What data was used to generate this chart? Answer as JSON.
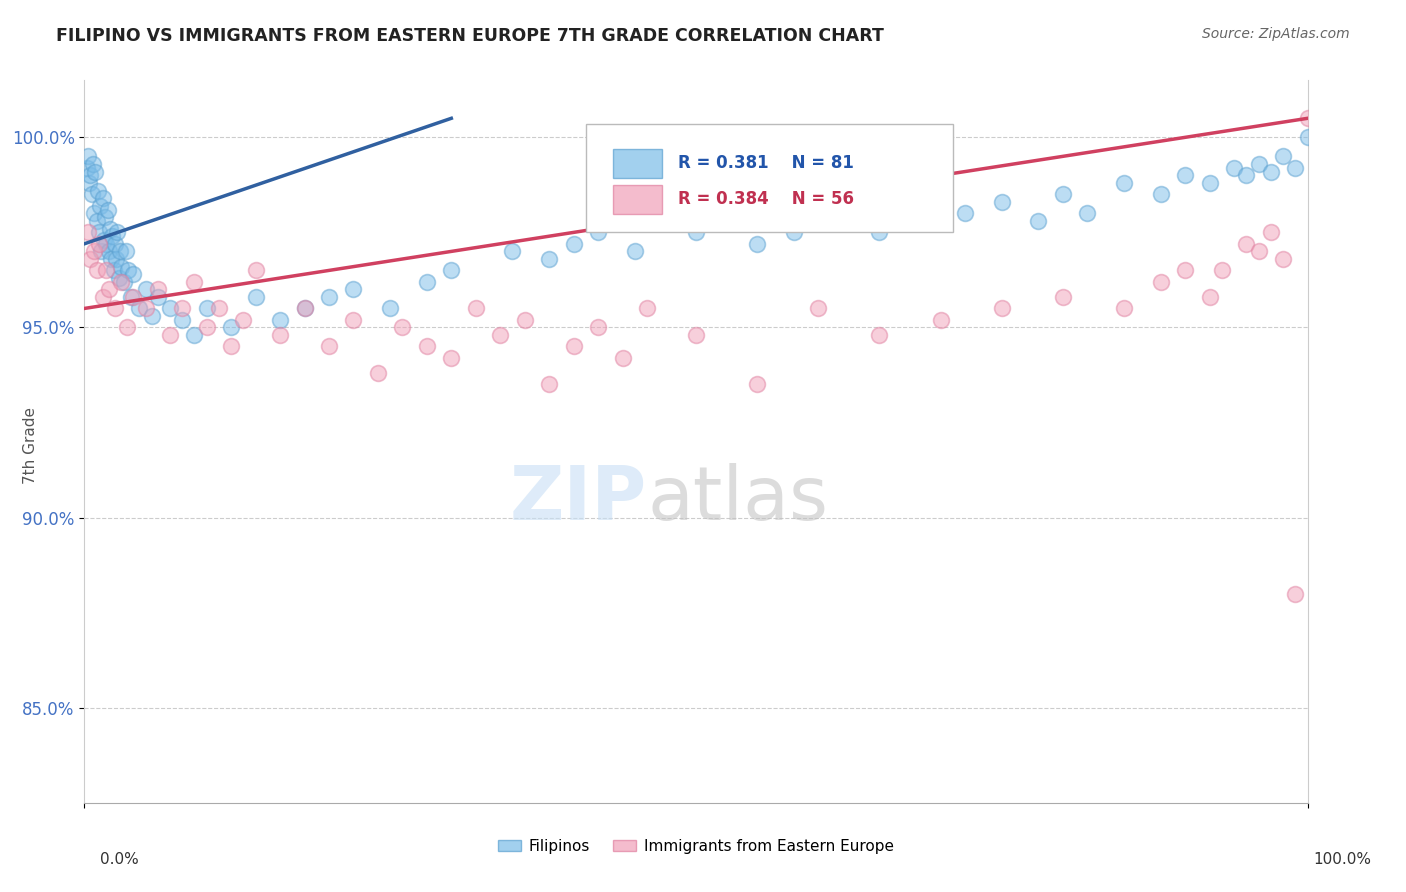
{
  "title": "FILIPINO VS IMMIGRANTS FROM EASTERN EUROPE 7TH GRADE CORRELATION CHART",
  "source": "Source: ZipAtlas.com",
  "ylabel": "7th Grade",
  "xlim": [
    0.0,
    100.0
  ],
  "ylim": [
    82.5,
    101.5
  ],
  "yticks": [
    85.0,
    90.0,
    95.0,
    100.0
  ],
  "ytick_labels": [
    "85.0%",
    "90.0%",
    "95.0%",
    "100.0%"
  ],
  "r_blue": 0.381,
  "n_blue": 81,
  "r_pink": 0.384,
  "n_pink": 56,
  "blue_color": "#7bbce8",
  "blue_edge_color": "#5aa0d0",
  "blue_line_color": "#3060a0",
  "pink_color": "#f0a0b8",
  "pink_edge_color": "#e080a0",
  "pink_line_color": "#d04060",
  "legend_label_blue": "Filipinos",
  "legend_label_pink": "Immigrants from Eastern Europe",
  "blue_scatter_x": [
    0.2,
    0.3,
    0.4,
    0.5,
    0.6,
    0.7,
    0.8,
    0.9,
    1.0,
    1.1,
    1.2,
    1.3,
    1.4,
    1.5,
    1.6,
    1.7,
    1.8,
    1.9,
    2.0,
    2.1,
    2.2,
    2.3,
    2.4,
    2.5,
    2.6,
    2.7,
    2.8,
    2.9,
    3.0,
    3.2,
    3.4,
    3.6,
    3.8,
    4.0,
    4.5,
    5.0,
    5.5,
    6.0,
    7.0,
    8.0,
    9.0,
    10.0,
    12.0,
    14.0,
    16.0,
    18.0,
    20.0,
    22.0,
    25.0,
    28.0,
    30.0,
    35.0,
    38.0,
    40.0,
    42.0,
    45.0,
    50.0,
    52.0,
    55.0,
    58.0,
    60.0,
    62.0,
    65.0,
    68.0,
    70.0,
    72.0,
    75.0,
    78.0,
    80.0,
    82.0,
    85.0,
    88.0,
    90.0,
    92.0,
    94.0,
    95.0,
    96.0,
    97.0,
    98.0,
    99.0,
    100.0
  ],
  "blue_scatter_y": [
    99.2,
    99.5,
    98.8,
    99.0,
    98.5,
    99.3,
    98.0,
    99.1,
    97.8,
    98.6,
    97.5,
    98.2,
    97.0,
    98.4,
    97.3,
    97.9,
    97.2,
    98.1,
    97.0,
    97.6,
    96.8,
    97.4,
    96.5,
    97.2,
    96.8,
    97.5,
    96.3,
    97.0,
    96.6,
    96.2,
    97.0,
    96.5,
    95.8,
    96.4,
    95.5,
    96.0,
    95.3,
    95.8,
    95.5,
    95.2,
    94.8,
    95.5,
    95.0,
    95.8,
    95.2,
    95.5,
    95.8,
    96.0,
    95.5,
    96.2,
    96.5,
    97.0,
    96.8,
    97.2,
    97.5,
    97.0,
    97.5,
    97.8,
    97.2,
    97.5,
    97.8,
    98.0,
    97.5,
    98.2,
    97.8,
    98.0,
    98.3,
    97.8,
    98.5,
    98.0,
    98.8,
    98.5,
    99.0,
    98.8,
    99.2,
    99.0,
    99.3,
    99.1,
    99.5,
    99.2,
    100.0
  ],
  "pink_scatter_x": [
    0.3,
    0.5,
    0.8,
    1.0,
    1.2,
    1.5,
    1.8,
    2.0,
    2.5,
    3.0,
    3.5,
    4.0,
    5.0,
    6.0,
    7.0,
    8.0,
    9.0,
    10.0,
    11.0,
    12.0,
    13.0,
    14.0,
    16.0,
    18.0,
    20.0,
    22.0,
    24.0,
    26.0,
    28.0,
    30.0,
    32.0,
    34.0,
    36.0,
    38.0,
    40.0,
    42.0,
    44.0,
    46.0,
    50.0,
    55.0,
    60.0,
    65.0,
    70.0,
    75.0,
    80.0,
    85.0,
    88.0,
    90.0,
    92.0,
    93.0,
    95.0,
    96.0,
    97.0,
    98.0,
    99.0,
    100.0
  ],
  "pink_scatter_y": [
    97.5,
    96.8,
    97.0,
    96.5,
    97.2,
    95.8,
    96.5,
    96.0,
    95.5,
    96.2,
    95.0,
    95.8,
    95.5,
    96.0,
    94.8,
    95.5,
    96.2,
    95.0,
    95.5,
    94.5,
    95.2,
    96.5,
    94.8,
    95.5,
    94.5,
    95.2,
    93.8,
    95.0,
    94.5,
    94.2,
    95.5,
    94.8,
    95.2,
    93.5,
    94.5,
    95.0,
    94.2,
    95.5,
    94.8,
    93.5,
    95.5,
    94.8,
    95.2,
    95.5,
    95.8,
    95.5,
    96.2,
    96.5,
    95.8,
    96.5,
    97.2,
    97.0,
    97.5,
    96.8,
    88.0,
    100.5
  ],
  "blue_line_x0": 0.0,
  "blue_line_y0": 97.2,
  "blue_line_x1": 30.0,
  "blue_line_y1": 100.5,
  "pink_line_x0": 0.0,
  "pink_line_y0": 95.5,
  "pink_line_x1": 100.0,
  "pink_line_y1": 100.5
}
